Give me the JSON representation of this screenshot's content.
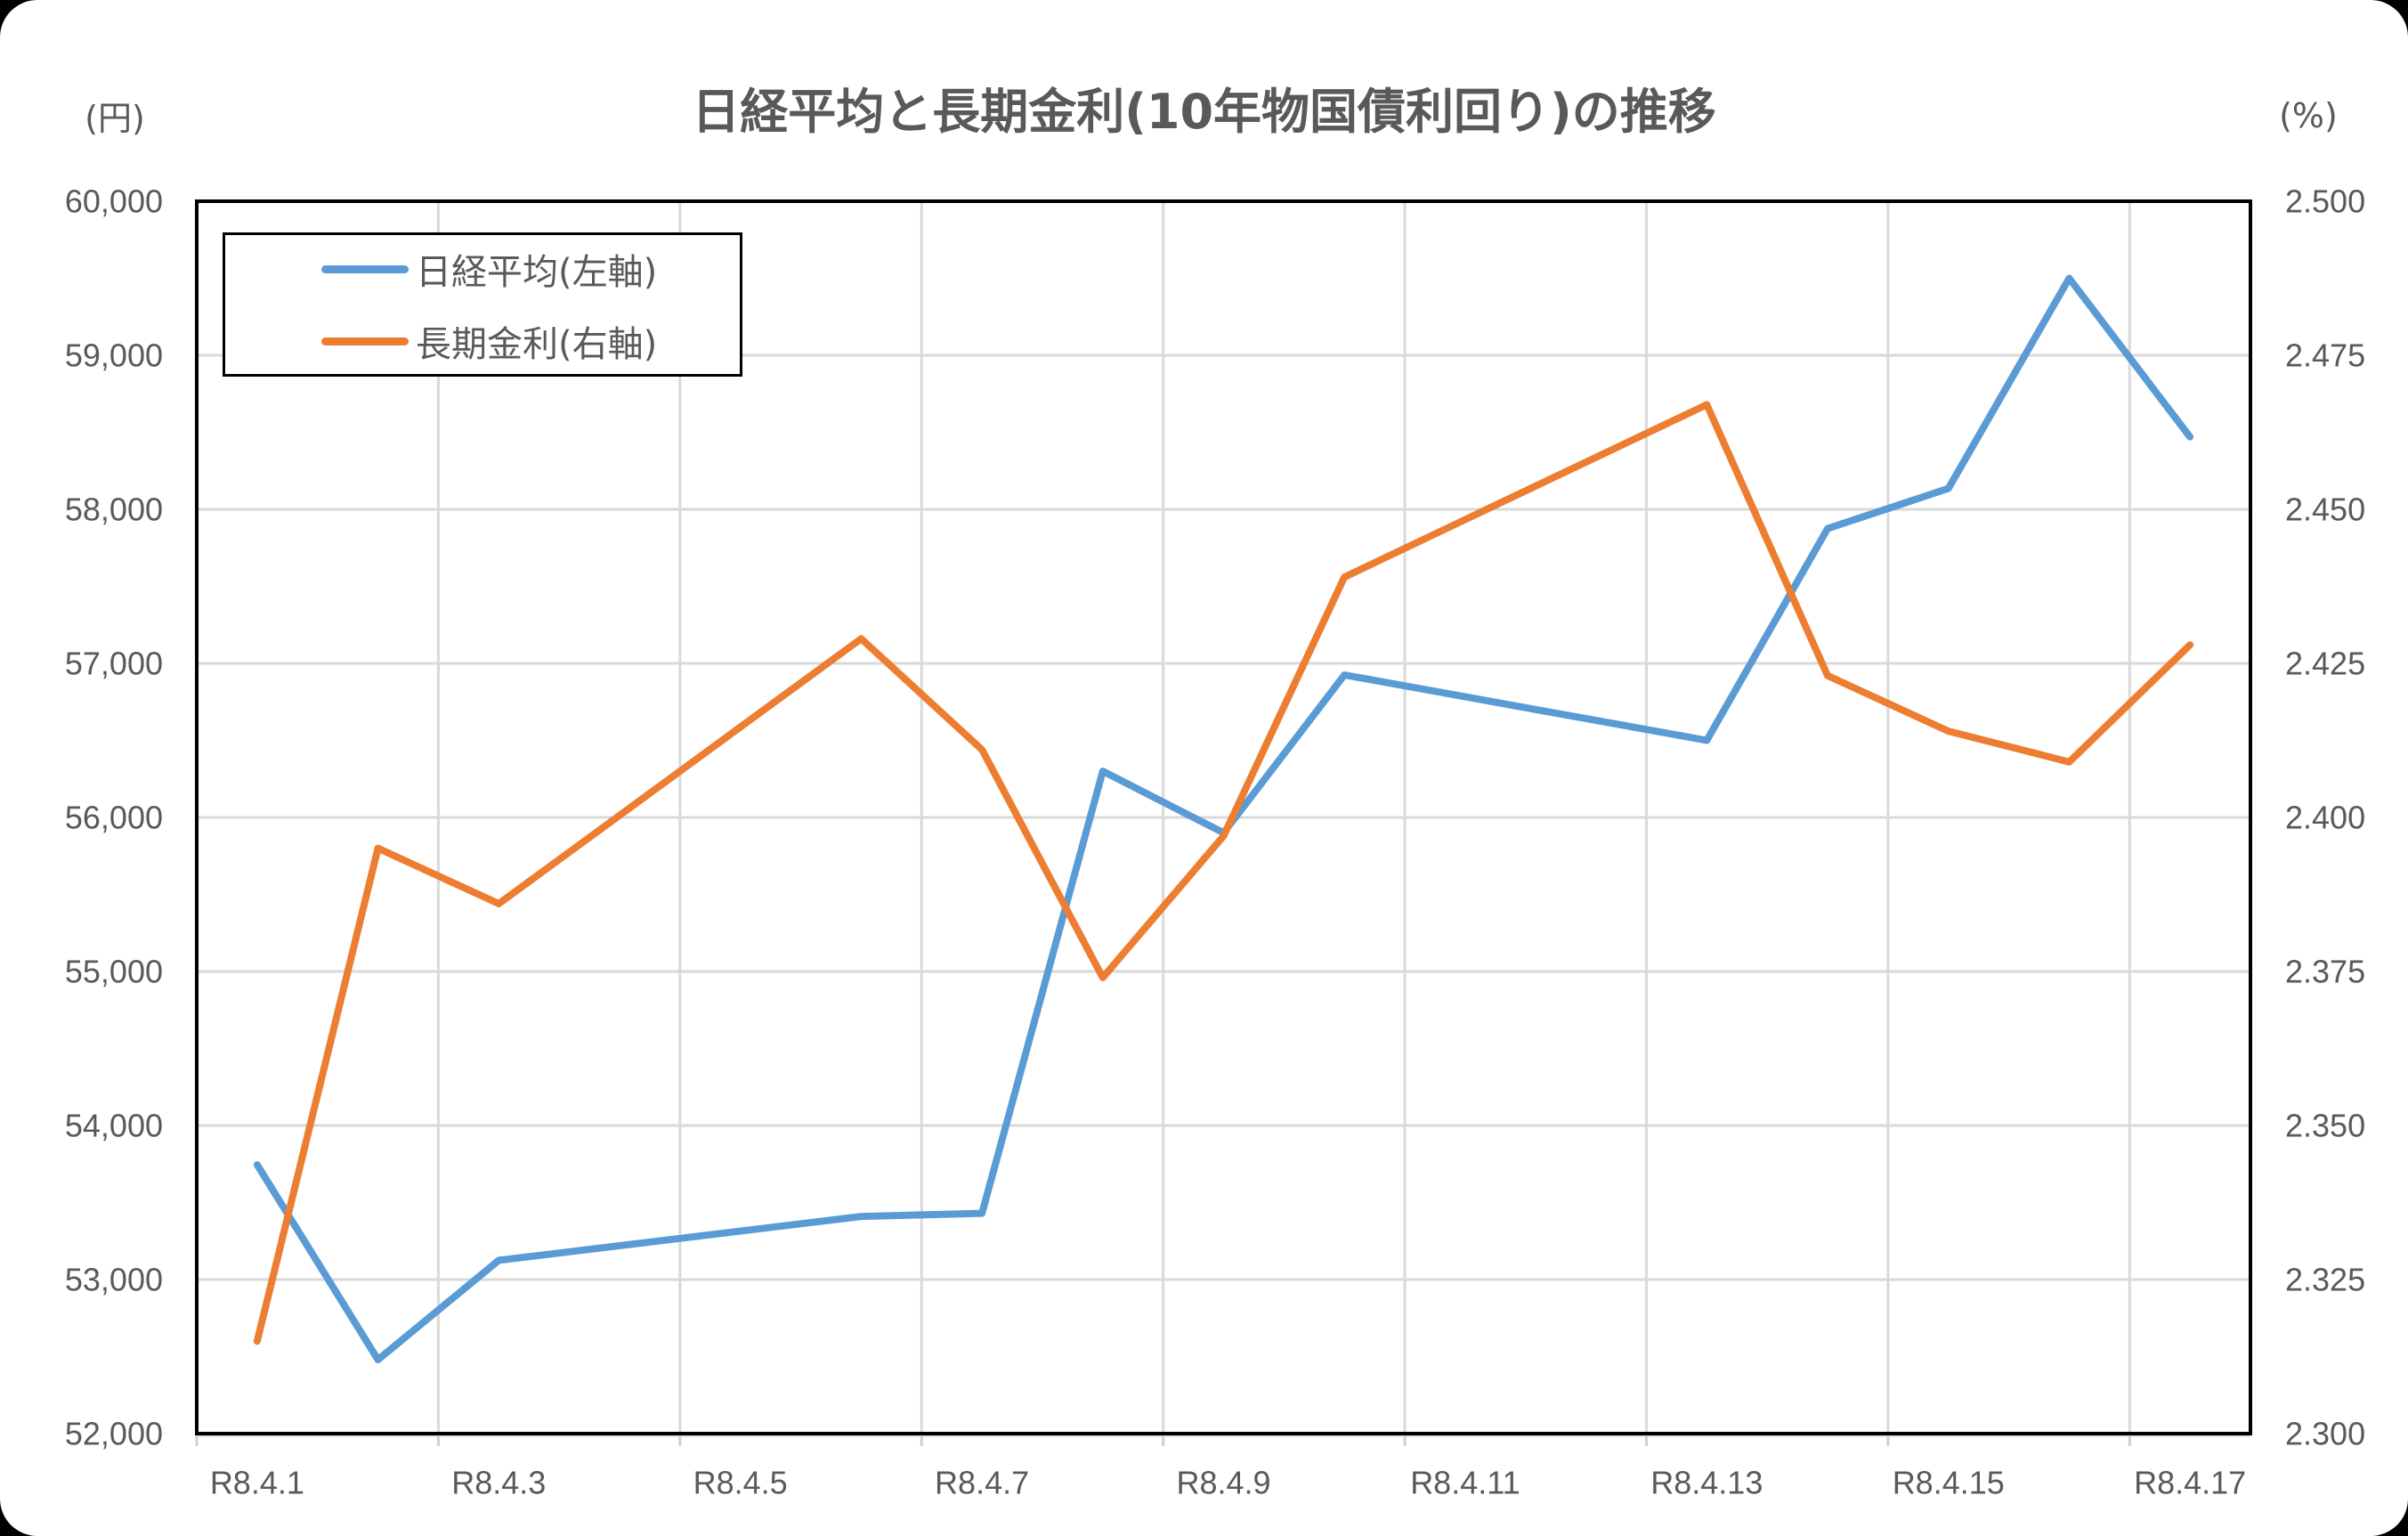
{
  "chart_data": {
    "type": "line",
    "title": "日経平均と長期金利(10年物国債利回り)の推移",
    "xlabel": "",
    "ylabel_left": "(円)",
    "ylabel_right": "(%)",
    "x": [
      "R8.4.1",
      "R8.4.2",
      "R8.4.3",
      "R8.4.6",
      "R8.4.7",
      "R8.4.8",
      "R8.4.9",
      "R8.4.10",
      "R8.4.13",
      "R8.4.14",
      "R8.4.15",
      "R8.4.16",
      "R8.4.17"
    ],
    "series": [
      {
        "name": "日経平均(左軸)",
        "axis": "left",
        "color": "#5B9BD5",
        "values": [
          53745,
          52480,
          53125,
          53410,
          53430,
          56300,
          55900,
          56925,
          56500,
          57875,
          58135,
          59500,
          58470
        ]
      },
      {
        "name": "長期金利(右軸)",
        "axis": "right",
        "color": "#ED7D31",
        "values": [
          2.315,
          2.395,
          2.386,
          2.429,
          2.411,
          2.374,
          2.397,
          2.439,
          2.467,
          2.423,
          2.414,
          2.409,
          2.428
        ]
      }
    ],
    "x_axis": {
      "tick_labels": [
        "R8.4.1",
        "R8.4.3",
        "R8.4.5",
        "R8.4.7",
        "R8.4.9",
        "R8.4.11",
        "R8.4.13",
        "R8.4.15",
        "R8.4.17"
      ],
      "range_days": [
        0.5,
        17.5
      ],
      "major_unit_days": 2
    },
    "y_left": {
      "min": 52000,
      "max": 60000,
      "step": 1000,
      "tick_labels": [
        "60,000",
        "59,000",
        "58,000",
        "57,000",
        "56,000",
        "55,000",
        "54,000",
        "53,000",
        "52,000"
      ]
    },
    "y_right": {
      "min": 2.3,
      "max": 2.5,
      "step": 0.025,
      "tick_labels": [
        "2.500",
        "2.475",
        "2.450",
        "2.425",
        "2.400",
        "2.375",
        "2.350",
        "2.325",
        "2.300"
      ]
    },
    "ylim": [
      52000,
      60000
    ],
    "ylim_right": [
      2.3,
      2.5
    ],
    "grid": true,
    "legend_position": "upper-left inside plot"
  },
  "colors": {
    "background": "#000000",
    "panel": "#FFFFFF",
    "text": "#595959",
    "grid": "#D9D9D9",
    "plot_border": "#000000",
    "axis_line": "#D0D0D0"
  }
}
